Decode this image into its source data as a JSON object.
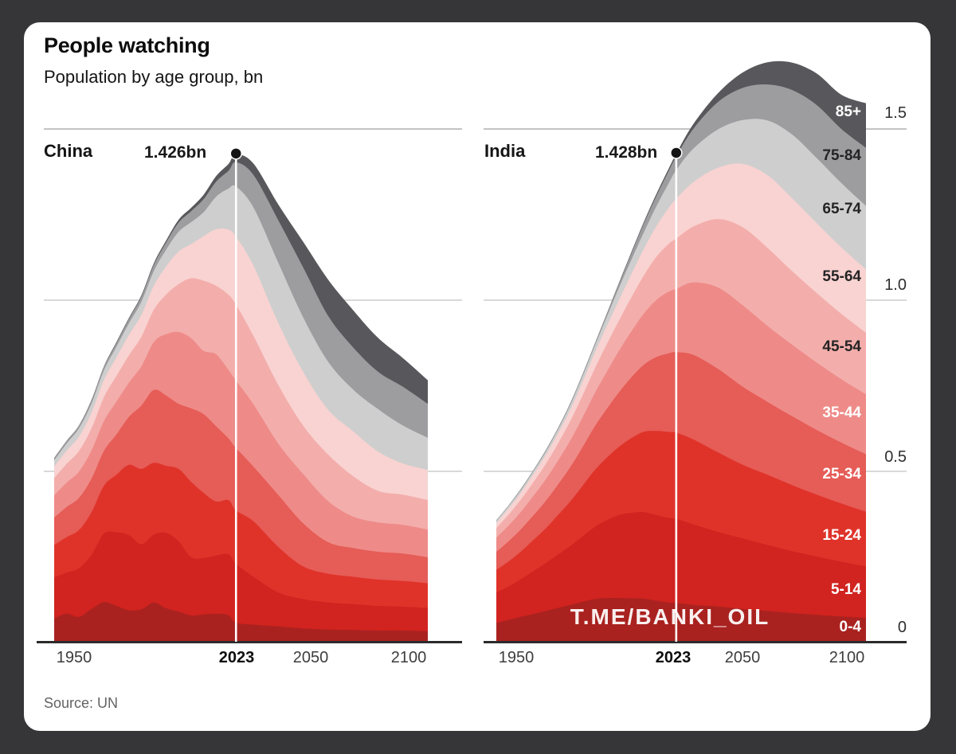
{
  "frame": {
    "background_color": "#363638",
    "card_color": "#ffffff"
  },
  "header": {
    "title": "People watching",
    "subtitle": "Population by age group, bn"
  },
  "panels": [
    {
      "country": "China",
      "peak_label": "1.426bn",
      "peak_year": 2023
    },
    {
      "country": "India",
      "peak_label": "1.428bn",
      "peak_year": 2023
    }
  ],
  "axis": {
    "x_ticks": [
      "1950",
      "2023",
      "2050",
      "2100"
    ],
    "y_ticks": [
      "1.5",
      "1.0",
      "0.5",
      "0"
    ]
  },
  "age_labels": [
    {
      "label": "85+",
      "y": 143,
      "on_dark": true
    },
    {
      "label": "75-84",
      "y": 198,
      "on_dark": false
    },
    {
      "label": "65-74",
      "y": 265,
      "on_dark": false
    },
    {
      "label": "55-64",
      "y": 350,
      "on_dark": false
    },
    {
      "label": "45-54",
      "y": 438,
      "on_dark": false
    },
    {
      "label": "35-44",
      "y": 521,
      "on_dark": true
    },
    {
      "label": "25-34",
      "y": 598,
      "on_dark": true
    },
    {
      "label": "15-24",
      "y": 675,
      "on_dark": true
    },
    {
      "label": "5-14",
      "y": 743,
      "on_dark": true
    },
    {
      "label": "0-4",
      "y": 790,
      "on_dark": true
    }
  ],
  "source": "Source: UN",
  "watermark": "T.ME/BANKI_OIL",
  "chart_data": [
    {
      "type": "area",
      "title": "China",
      "stacked": true,
      "xlim": [
        1950,
        2100
      ],
      "ylim": [
        0,
        1.5
      ],
      "grid_values": [
        0.5,
        1.0,
        1.5
      ],
      "annotation": {
        "year": 2023,
        "total_bn": 1.426,
        "label": "1.426bn"
      },
      "x_years": [
        1950,
        1955,
        1960,
        1965,
        1970,
        1975,
        1980,
        1985,
        1990,
        1995,
        2000,
        2005,
        2010,
        2015,
        2020,
        2023,
        2030,
        2040,
        2050,
        2060,
        2070,
        2080,
        2090,
        2100
      ],
      "series": [
        {
          "name": "0-4",
          "color": "#a92220",
          "values": [
            0.07,
            0.084,
            0.075,
            0.098,
            0.118,
            0.107,
            0.094,
            0.097,
            0.117,
            0.1,
            0.09,
            0.079,
            0.082,
            0.084,
            0.08,
            0.058,
            0.052,
            0.047,
            0.041,
            0.038,
            0.037,
            0.035,
            0.035,
            0.033
          ]
        },
        {
          "name": "5-14",
          "color": "#d1231f",
          "values": [
            0.12,
            0.12,
            0.142,
            0.158,
            0.2,
            0.215,
            0.22,
            0.19,
            0.198,
            0.22,
            0.205,
            0.17,
            0.165,
            0.17,
            0.178,
            0.172,
            0.14,
            0.099,
            0.086,
            0.079,
            0.075,
            0.072,
            0.07,
            0.068
          ]
        },
        {
          "name": "15-24",
          "color": "#df332a",
          "values": [
            0.095,
            0.104,
            0.112,
            0.125,
            0.14,
            0.168,
            0.205,
            0.22,
            0.21,
            0.196,
            0.212,
            0.22,
            0.19,
            0.158,
            0.158,
            0.156,
            0.162,
            0.133,
            0.095,
            0.084,
            0.08,
            0.077,
            0.075,
            0.072
          ]
        },
        {
          "name": "25-34",
          "color": "#e65c57",
          "values": [
            0.08,
            0.088,
            0.094,
            0.098,
            0.102,
            0.118,
            0.14,
            0.185,
            0.213,
            0.205,
            0.19,
            0.215,
            0.23,
            0.22,
            0.18,
            0.182,
            0.16,
            0.152,
            0.126,
            0.092,
            0.084,
            0.081,
            0.08,
            0.076
          ]
        },
        {
          "name": "35-44",
          "color": "#ee8b88",
          "values": [
            0.065,
            0.071,
            0.077,
            0.082,
            0.087,
            0.096,
            0.1,
            0.115,
            0.14,
            0.18,
            0.21,
            0.205,
            0.185,
            0.21,
            0.2,
            0.197,
            0.182,
            0.15,
            0.144,
            0.12,
            0.092,
            0.086,
            0.084,
            0.081
          ]
        },
        {
          "name": "45-54",
          "color": "#f3aeac",
          "values": [
            0.05,
            0.055,
            0.06,
            0.065,
            0.07,
            0.075,
            0.08,
            0.086,
            0.094,
            0.116,
            0.14,
            0.175,
            0.205,
            0.2,
            0.22,
            0.222,
            0.2,
            0.171,
            0.141,
            0.136,
            0.118,
            0.092,
            0.088,
            0.086
          ]
        },
        {
          "name": "55-64",
          "color": "#f8d3d1",
          "values": [
            0.034,
            0.038,
            0.042,
            0.046,
            0.05,
            0.054,
            0.059,
            0.064,
            0.07,
            0.082,
            0.095,
            0.1,
            0.13,
            0.165,
            0.19,
            0.198,
            0.205,
            0.181,
            0.157,
            0.131,
            0.131,
            0.115,
            0.091,
            0.088
          ]
        },
        {
          "name": "65-74",
          "color": "#cecece",
          "values": [
            0.018,
            0.021,
            0.024,
            0.026,
            0.028,
            0.031,
            0.034,
            0.038,
            0.043,
            0.049,
            0.058,
            0.064,
            0.07,
            0.095,
            0.12,
            0.147,
            0.17,
            0.176,
            0.159,
            0.14,
            0.122,
            0.124,
            0.111,
            0.094
          ]
        },
        {
          "name": "75-84",
          "color": "#9d9da0",
          "values": [
            0.006,
            0.007,
            0.008,
            0.009,
            0.01,
            0.011,
            0.013,
            0.015,
            0.018,
            0.021,
            0.027,
            0.032,
            0.038,
            0.044,
            0.052,
            0.071,
            0.095,
            0.124,
            0.146,
            0.134,
            0.123,
            0.109,
            0.113,
            0.099
          ]
        },
        {
          "name": "85+",
          "color": "#58585c",
          "values": [
            0.001,
            0.001,
            0.001,
            0.002,
            0.002,
            0.003,
            0.003,
            0.004,
            0.005,
            0.006,
            0.008,
            0.01,
            0.013,
            0.016,
            0.02,
            0.023,
            0.033,
            0.046,
            0.075,
            0.106,
            0.109,
            0.099,
            0.084,
            0.069
          ]
        }
      ]
    },
    {
      "type": "area",
      "title": "India",
      "stacked": true,
      "xlim": [
        1950,
        2100
      ],
      "ylim": [
        0,
        1.5
      ],
      "grid_values": [
        0.5,
        1.0,
        1.5
      ],
      "annotation": {
        "year": 2023,
        "total_bn": 1.428,
        "label": "1.428bn"
      },
      "x_years": [
        1950,
        1955,
        1960,
        1965,
        1970,
        1975,
        1980,
        1985,
        1990,
        1995,
        2000,
        2005,
        2010,
        2015,
        2020,
        2023,
        2030,
        2040,
        2050,
        2060,
        2070,
        2080,
        2090,
        2100
      ],
      "series": [
        {
          "name": "0-4",
          "color": "#a92220",
          "values": [
            0.057,
            0.066,
            0.075,
            0.083,
            0.092,
            0.101,
            0.11,
            0.119,
            0.127,
            0.13,
            0.13,
            0.129,
            0.128,
            0.122,
            0.117,
            0.116,
            0.11,
            0.105,
            0.098,
            0.092,
            0.086,
            0.081,
            0.076,
            0.072
          ]
        },
        {
          "name": "5-14",
          "color": "#d1231f",
          "values": [
            0.089,
            0.098,
            0.11,
            0.125,
            0.14,
            0.156,
            0.172,
            0.191,
            0.211,
            0.228,
            0.243,
            0.25,
            0.253,
            0.25,
            0.247,
            0.245,
            0.235,
            0.218,
            0.206,
            0.193,
            0.181,
            0.17,
            0.16,
            0.15
          ]
        },
        {
          "name": "15-24",
          "color": "#df332a",
          "values": [
            0.066,
            0.073,
            0.081,
            0.091,
            0.101,
            0.115,
            0.13,
            0.148,
            0.166,
            0.183,
            0.2,
            0.219,
            0.235,
            0.246,
            0.251,
            0.252,
            0.248,
            0.232,
            0.215,
            0.205,
            0.193,
            0.181,
            0.17,
            0.16
          ]
        },
        {
          "name": "25-34",
          "color": "#e65c57",
          "values": [
            0.053,
            0.059,
            0.065,
            0.072,
            0.08,
            0.089,
            0.1,
            0.113,
            0.128,
            0.143,
            0.16,
            0.178,
            0.196,
            0.216,
            0.23,
            0.235,
            0.247,
            0.244,
            0.228,
            0.213,
            0.201,
            0.189,
            0.178,
            0.168
          ]
        },
        {
          "name": "35-44",
          "color": "#ee8b88",
          "values": [
            0.041,
            0.046,
            0.051,
            0.057,
            0.063,
            0.07,
            0.078,
            0.087,
            0.097,
            0.109,
            0.122,
            0.135,
            0.15,
            0.167,
            0.18,
            0.185,
            0.212,
            0.238,
            0.238,
            0.222,
            0.209,
            0.197,
            0.185,
            0.175
          ]
        },
        {
          "name": "45-54",
          "color": "#f3aeac",
          "values": [
            0.028,
            0.032,
            0.036,
            0.04,
            0.045,
            0.05,
            0.057,
            0.064,
            0.072,
            0.081,
            0.089,
            0.1,
            0.112,
            0.126,
            0.14,
            0.147,
            0.163,
            0.2,
            0.228,
            0.228,
            0.215,
            0.203,
            0.191,
            0.18
          ]
        },
        {
          "name": "55-64",
          "color": "#f8d3d1",
          "values": [
            0.015,
            0.018,
            0.02,
            0.023,
            0.026,
            0.029,
            0.033,
            0.039,
            0.046,
            0.053,
            0.06,
            0.068,
            0.078,
            0.09,
            0.105,
            0.116,
            0.13,
            0.15,
            0.185,
            0.212,
            0.213,
            0.204,
            0.194,
            0.185
          ]
        },
        {
          "name": "65-74",
          "color": "#cecece",
          "values": [
            0.006,
            0.007,
            0.008,
            0.009,
            0.01,
            0.012,
            0.014,
            0.017,
            0.02,
            0.027,
            0.036,
            0.042,
            0.048,
            0.058,
            0.072,
            0.084,
            0.098,
            0.112,
            0.128,
            0.16,
            0.186,
            0.19,
            0.188,
            0.185
          ]
        },
        {
          "name": "75-84",
          "color": "#9d9da0",
          "values": [
            0.002,
            0.002,
            0.002,
            0.002,
            0.003,
            0.003,
            0.004,
            0.005,
            0.006,
            0.008,
            0.012,
            0.019,
            0.026,
            0.03,
            0.036,
            0.04,
            0.058,
            0.08,
            0.094,
            0.105,
            0.13,
            0.155,
            0.158,
            0.17
          ]
        },
        {
          "name": "85+",
          "color": "#58585c",
          "values": [
            0.0,
            0.0,
            0.001,
            0.001,
            0.001,
            0.001,
            0.001,
            0.001,
            0.001,
            0.002,
            0.003,
            0.004,
            0.005,
            0.006,
            0.007,
            0.008,
            0.014,
            0.026,
            0.045,
            0.065,
            0.08,
            0.092,
            0.1,
            0.13
          ]
        }
      ]
    }
  ]
}
